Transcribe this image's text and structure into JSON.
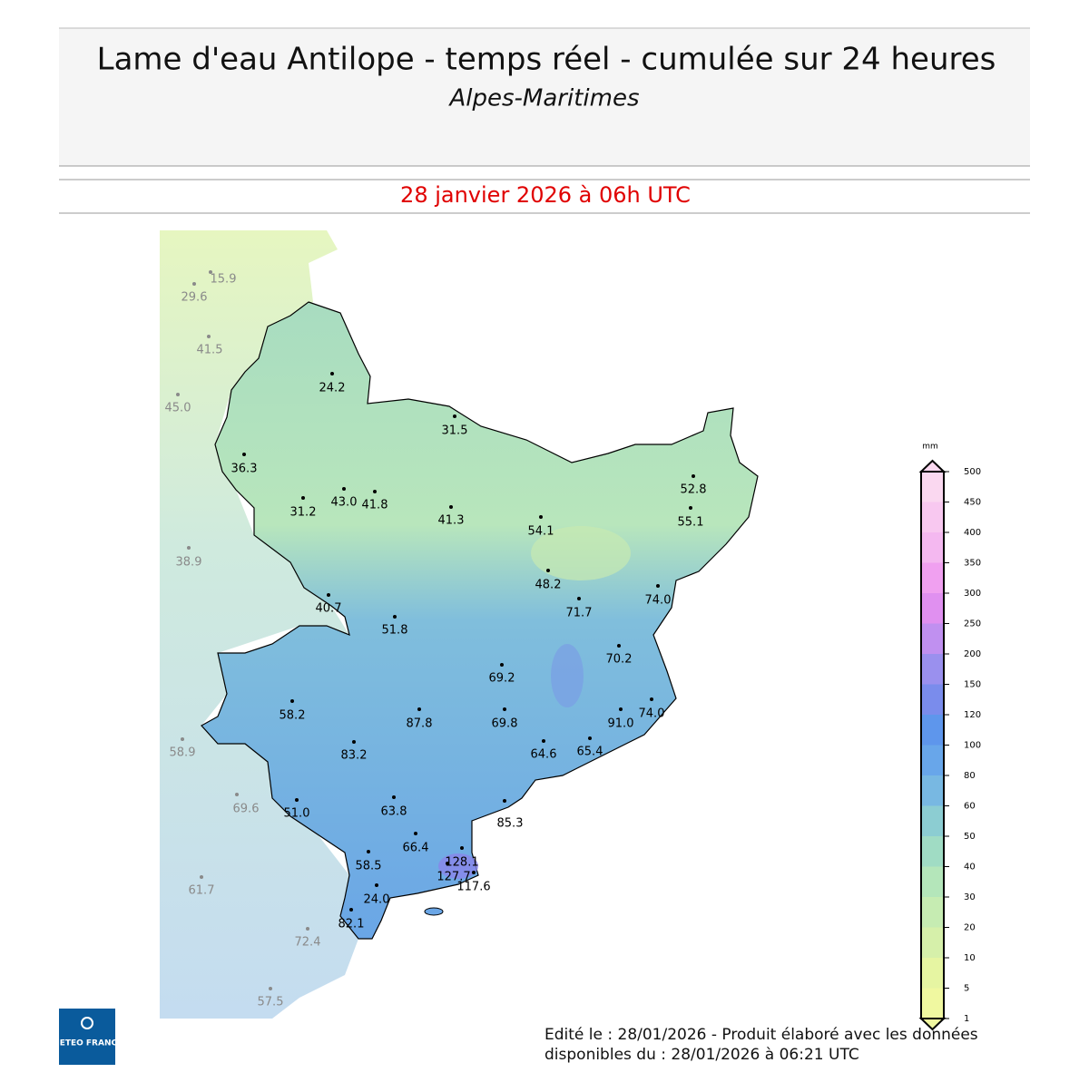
{
  "header": {
    "title": "Lame d'eau Antilope - temps réel - cumulée sur 24 heures",
    "subtitle": "Alpes-Maritimes"
  },
  "date": "28 janvier 2026 à 06h UTC",
  "stations": [
    {
      "label": "15.9",
      "outside": true
    },
    {
      "label": "29.6",
      "outside": true
    },
    {
      "label": "41.5",
      "outside": true
    },
    {
      "label": "45.0",
      "outside": true
    },
    {
      "label": "38.9",
      "outside": true
    },
    {
      "label": "58.9",
      "outside": true
    },
    {
      "label": "69.6",
      "outside": true
    },
    {
      "label": "61.7",
      "outside": true
    },
    {
      "label": "72.4",
      "outside": true
    },
    {
      "label": "57.5",
      "outside": true
    },
    {
      "label": "24.2",
      "outside": false
    },
    {
      "label": "31.5",
      "outside": false
    },
    {
      "label": "36.3",
      "outside": false
    },
    {
      "label": "43.0",
      "outside": false
    },
    {
      "label": "41.8",
      "outside": false
    },
    {
      "label": "31.2",
      "outside": false
    },
    {
      "label": "41.3",
      "outside": false
    },
    {
      "label": "52.8",
      "outside": false
    },
    {
      "label": "54.1",
      "outside": false
    },
    {
      "label": "55.1",
      "outside": false
    },
    {
      "label": "48.2",
      "outside": false
    },
    {
      "label": "74.0",
      "outside": false
    },
    {
      "label": "40.7",
      "outside": false
    },
    {
      "label": "71.7",
      "outside": false
    },
    {
      "label": "51.8",
      "outside": false
    },
    {
      "label": "70.2",
      "outside": false
    },
    {
      "label": "69.2",
      "outside": false
    },
    {
      "label": "58.2",
      "outside": false
    },
    {
      "label": "87.8",
      "outside": false
    },
    {
      "label": "69.8",
      "outside": false
    },
    {
      "label": "91.0",
      "outside": false
    },
    {
      "label": "74.0",
      "outside": false
    },
    {
      "label": "83.2",
      "outside": false
    },
    {
      "label": "64.6",
      "outside": false
    },
    {
      "label": "65.4",
      "outside": false
    },
    {
      "label": "51.0",
      "outside": false
    },
    {
      "label": "63.8",
      "outside": false
    },
    {
      "label": "85.3",
      "outside": false
    },
    {
      "label": "66.4",
      "outside": false
    },
    {
      "label": "58.5",
      "outside": false
    },
    {
      "label": "128.1",
      "outside": false
    },
    {
      "label": "127.7",
      "outside": false
    },
    {
      "label": "117.6",
      "outside": false
    },
    {
      "label": "24.0",
      "outside": false
    },
    {
      "label": "82.1",
      "outside": false
    }
  ],
  "legend": {
    "unit": "mm",
    "ticks": [
      1,
      5,
      10,
      20,
      30,
      40,
      50,
      60,
      80,
      100,
      120,
      150,
      200,
      250,
      300,
      350,
      400,
      450,
      500
    ],
    "colors": [
      "#f0f8a0",
      "#e6f5a2",
      "#d6f0aa",
      "#c6ecb2",
      "#b4e6ba",
      "#a0dcc4",
      "#8ccdd2",
      "#78b8e2",
      "#68a6ea",
      "#5e96ec",
      "#7a8cec",
      "#9a90ee",
      "#c090f0",
      "#e090f0",
      "#f0a0f0",
      "#f4b8f0",
      "#f8c8f0",
      "#fad8f0"
    ]
  },
  "logo": "METEO FRANCE",
  "footer": [
    "Edité le : 28/01/2026 - Produit élaboré avec les données",
    "disponibles du : 28/01/2026 à 06:21 UTC"
  ]
}
